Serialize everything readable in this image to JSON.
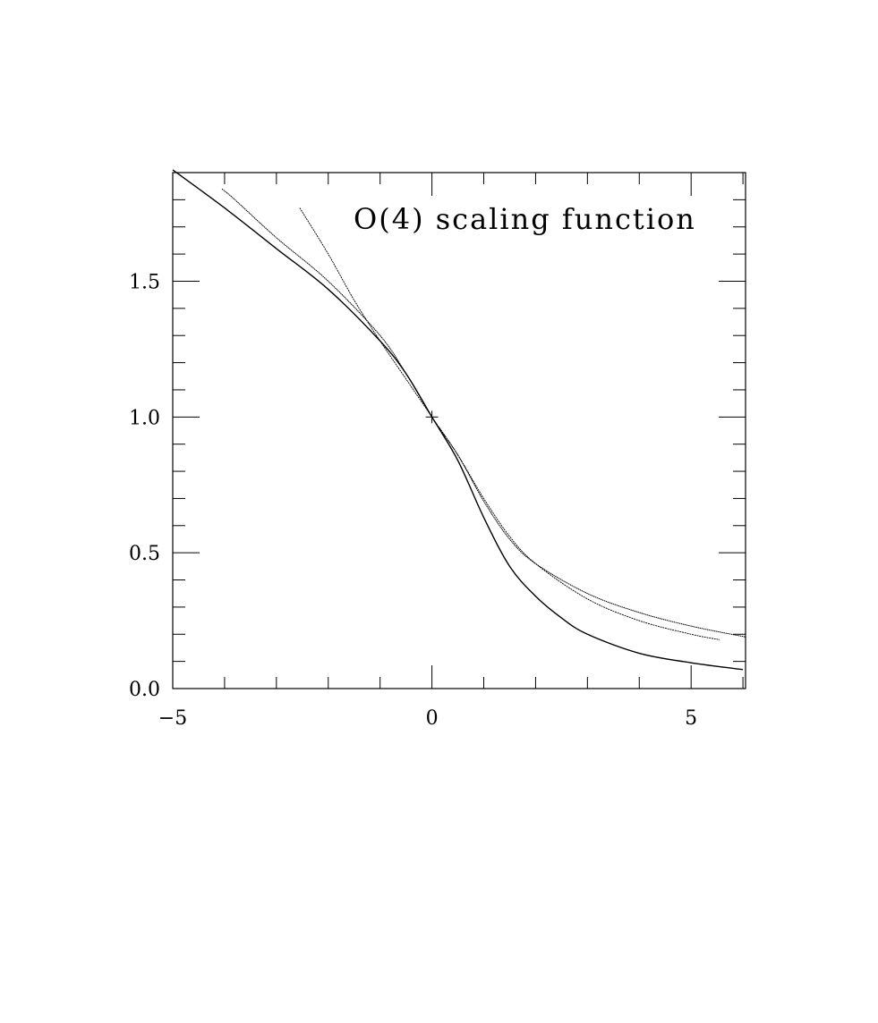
{
  "chart_data": {
    "type": "line",
    "title": "",
    "xlabel": "",
    "ylabel": "",
    "annotation": "O(4) scaling function",
    "xlim": [
      -5,
      6.05
    ],
    "ylim": [
      0,
      1.9
    ],
    "x_major_ticks": [
      -5,
      0,
      5
    ],
    "x_minor_ticks": [
      -4,
      -3,
      -2,
      -1,
      1,
      2,
      3,
      4,
      6
    ],
    "y_major_ticks": [
      0.0,
      0.5,
      1.0,
      1.5
    ],
    "y_minor_ticks": [
      0.1,
      0.2,
      0.3,
      0.4,
      0.6,
      0.7,
      0.8,
      0.9,
      1.1,
      1.2,
      1.3,
      1.4,
      1.6,
      1.7,
      1.8
    ],
    "x_tick_labels": [
      "−5",
      "0",
      "5"
    ],
    "y_tick_labels": [
      "0.0",
      "0.5",
      "1.0",
      "1.5"
    ],
    "grid": false,
    "legend": "none",
    "marker": {
      "symbol": "plus",
      "x": 0,
      "y": 1.0
    },
    "series": [
      {
        "style": "solid",
        "x": [
          -5,
          -4,
          -3,
          -2,
          -1,
          -0.5,
          0,
          0.5,
          1,
          1.5,
          2,
          2.5,
          3,
          4,
          5,
          6
        ],
        "y": [
          1.91,
          1.77,
          1.62,
          1.47,
          1.28,
          1.16,
          1.0,
          0.84,
          0.63,
          0.45,
          0.34,
          0.26,
          0.2,
          0.13,
          0.095,
          0.07
        ]
      },
      {
        "style": "dotted",
        "x": [
          -4.05,
          -3.8,
          -3,
          -2,
          -1,
          -0.5,
          0,
          0.5,
          1,
          1.5,
          2,
          3,
          4,
          5,
          6.05
        ],
        "y": [
          1.84,
          1.8,
          1.66,
          1.5,
          1.3,
          1.16,
          1.0,
          0.86,
          0.69,
          0.55,
          0.46,
          0.35,
          0.28,
          0.23,
          0.19
        ]
      },
      {
        "style": "dashed",
        "x": [
          -2.55,
          -2,
          -1.5,
          -1,
          -0.5,
          0,
          0.5,
          1,
          1.5,
          2,
          3,
          4,
          5,
          5.55
        ],
        "y": [
          1.77,
          1.6,
          1.43,
          1.28,
          1.14,
          1.0,
          0.86,
          0.7,
          0.56,
          0.46,
          0.33,
          0.25,
          0.2,
          0.18
        ]
      }
    ]
  }
}
